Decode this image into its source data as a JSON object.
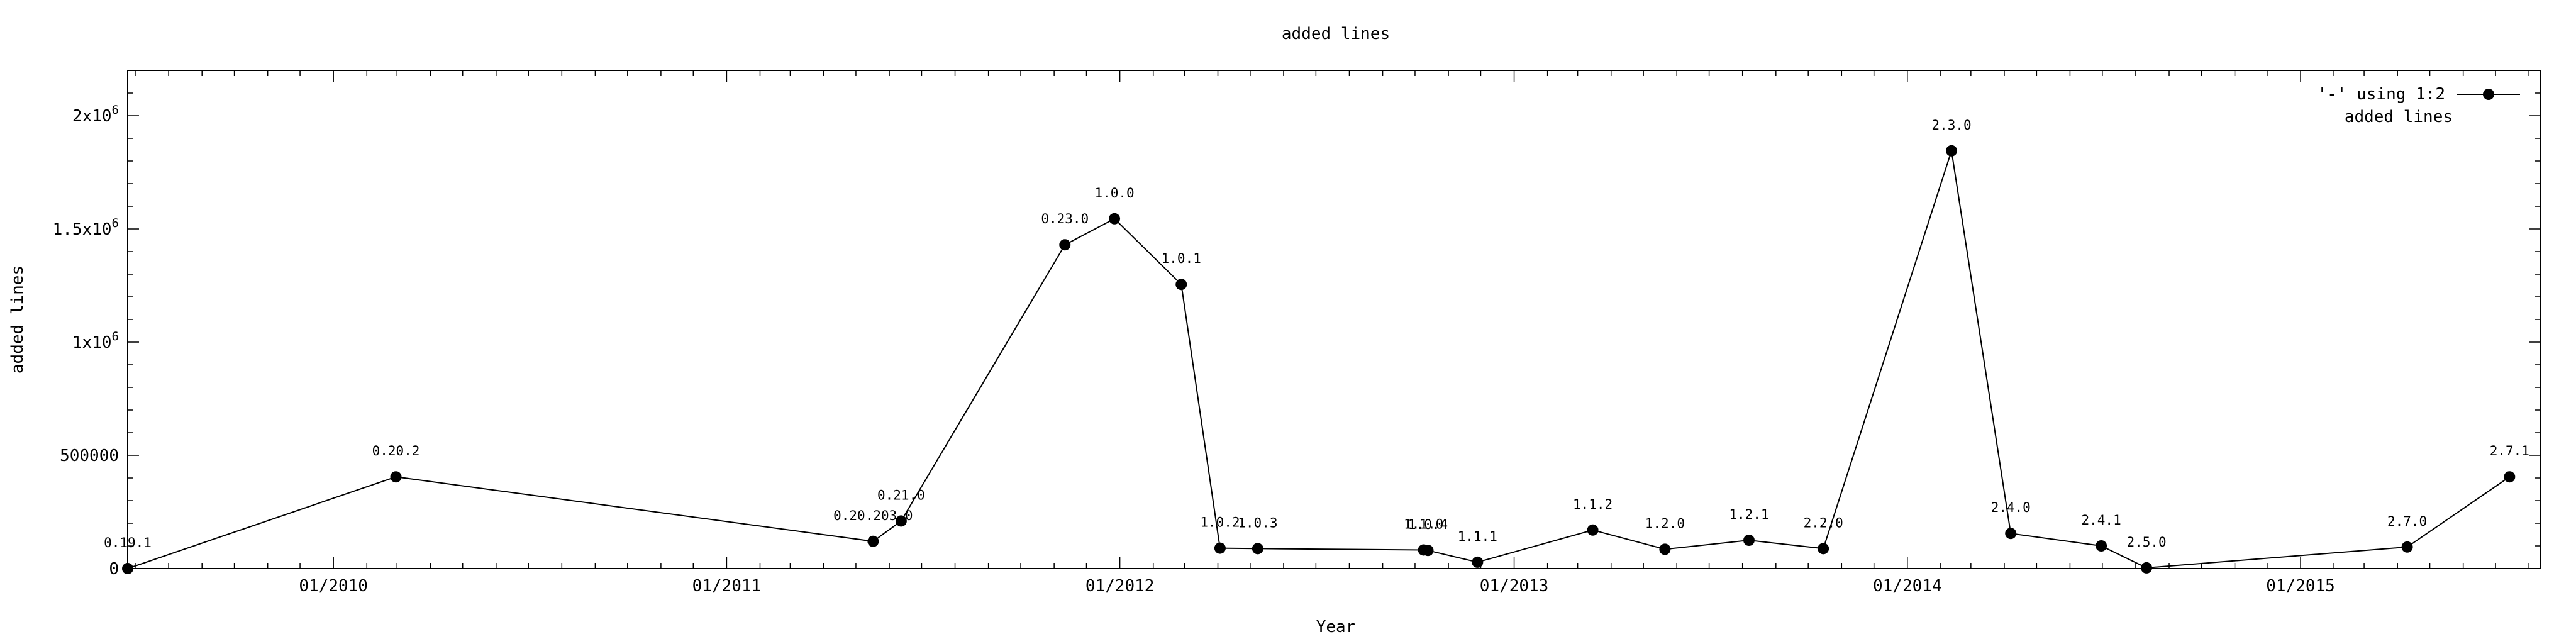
{
  "chart_data": {
    "type": "line",
    "title": "added lines",
    "xlabel": "Year",
    "ylabel": "added lines",
    "x_is_date": true,
    "xlim": [
      "2009-06-24",
      "2015-08-12"
    ],
    "ylim": [
      0,
      2200000
    ],
    "grid": false,
    "legend_position": "top-right",
    "legend_lines": [
      "'-' using 1:2",
      "added lines"
    ],
    "x_ticks": [
      {
        "date": "2010-01-01",
        "label": "01/2010"
      },
      {
        "date": "2011-01-01",
        "label": "01/2011"
      },
      {
        "date": "2012-01-01",
        "label": "01/2012"
      },
      {
        "date": "2013-01-01",
        "label": "01/2013"
      },
      {
        "date": "2014-01-01",
        "label": "01/2014"
      },
      {
        "date": "2015-01-01",
        "label": "01/2015"
      }
    ],
    "y_ticks": [
      {
        "value": 0,
        "label": "0"
      },
      {
        "value": 500000,
        "label": "500000"
      },
      {
        "value": 1000000,
        "label": "1x10",
        "sup": "6"
      },
      {
        "value": 1500000,
        "label": "1.5x10",
        "sup": "6"
      },
      {
        "value": 2000000,
        "label": "2x10",
        "sup": "6"
      }
    ],
    "series": [
      {
        "points": [
          {
            "x": "2009-06-24",
            "y": 0,
            "label": "0.19.1"
          },
          {
            "x": "2010-02-28",
            "y": 405000,
            "label": "0.20.2"
          },
          {
            "x": "2011-05-17",
            "y": 120000,
            "label": "0.20.203.0"
          },
          {
            "x": "2011-06-12",
            "y": 210000,
            "label": "0.21.0"
          },
          {
            "x": "2011-11-11",
            "y": 1430000,
            "label": "0.23.0"
          },
          {
            "x": "2011-12-27",
            "y": 1545000,
            "label": "1.0.0"
          },
          {
            "x": "2012-02-27",
            "y": 1255000,
            "label": "1.0.1"
          },
          {
            "x": "2012-04-03",
            "y": 90000,
            "label": "1.0.2"
          },
          {
            "x": "2012-05-08",
            "y": 88000,
            "label": "1.0.3"
          },
          {
            "x": "2012-10-09",
            "y": 82000,
            "label": "1.1.0"
          },
          {
            "x": "2012-10-13",
            "y": 80000,
            "label": "1.0.4"
          },
          {
            "x": "2012-11-28",
            "y": 28000,
            "label": "1.1.1"
          },
          {
            "x": "2013-03-15",
            "y": 170000,
            "label": "1.1.2"
          },
          {
            "x": "2013-05-21",
            "y": 85000,
            "label": "1.2.0"
          },
          {
            "x": "2013-08-07",
            "y": 125000,
            "label": "1.2.1"
          },
          {
            "x": "2013-10-15",
            "y": 88000,
            "label": "2.2.0"
          },
          {
            "x": "2014-02-11",
            "y": 1845000,
            "label": "2.3.0"
          },
          {
            "x": "2014-04-07",
            "y": 155000,
            "label": "2.4.0"
          },
          {
            "x": "2014-06-30",
            "y": 100000,
            "label": "2.4.1"
          },
          {
            "x": "2014-08-11",
            "y": 3000,
            "label": "2.5.0"
          },
          {
            "x": "2015-04-10",
            "y": 95000,
            "label": "2.7.0"
          },
          {
            "x": "2015-07-14",
            "y": 405000,
            "label": "2.7.1"
          }
        ]
      }
    ]
  }
}
